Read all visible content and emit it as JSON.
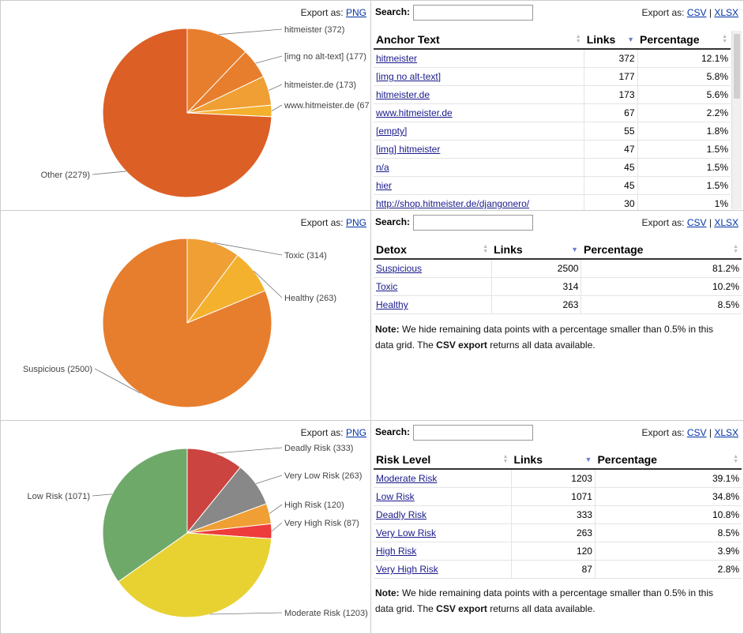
{
  "export_png_label": "Export as:",
  "export_png_link": "PNG",
  "export_grid_label": "Export as:",
  "export_csv": "CSV",
  "export_xlsx": "XLSX",
  "export_separator": "|",
  "search_label": "Search:",
  "note_bold": "Note:",
  "note_text": " We hide remaining data points with a percentage smaller than 0.5% in this data grid. The ",
  "note_bold2": "CSV export",
  "note_text2": " returns all data available.",
  "colors": {
    "orange_dark": "#dc5f26",
    "orange": "#e77e2d",
    "orange_light": "#ef9f34",
    "yellow_orange": "#f4b12e",
    "red": "#cc4440",
    "gray": "#888888",
    "green": "#6fa96a",
    "yellow": "#e8d232",
    "bright_red": "#ee3b3b"
  },
  "chart_data": [
    {
      "type": "pie",
      "slices": [
        {
          "label": "hitmeister (372)",
          "value": 372
        },
        {
          "label": "[img no alt-text] (177)",
          "value": 177
        },
        {
          "label": "hitmeister.de (173)",
          "value": 173
        },
        {
          "label": "www.hitmeister.de (67",
          "value": 67
        },
        {
          "label": "Other (2279)",
          "value": 2279
        }
      ]
    },
    {
      "type": "pie",
      "slices": [
        {
          "label": "Toxic (314)",
          "value": 314
        },
        {
          "label": "Healthy (263)",
          "value": 263
        },
        {
          "label": "Suspicious (2500)",
          "value": 2500
        }
      ]
    },
    {
      "type": "pie",
      "slices": [
        {
          "label": "Deadly Risk (333)",
          "value": 333
        },
        {
          "label": "Very Low Risk (263)",
          "value": 263
        },
        {
          "label": "High Risk (120)",
          "value": 120
        },
        {
          "label": "Very High Risk (87)",
          "value": 87
        },
        {
          "label": "Moderate Risk (1203)",
          "value": 1203
        },
        {
          "label": "Low Risk (1071)",
          "value": 1071
        }
      ]
    }
  ],
  "tables": [
    {
      "headers": [
        "Anchor Text",
        "Links",
        "Percentage"
      ],
      "rows": [
        [
          "hitmeister",
          "372",
          "12.1%"
        ],
        [
          "[img no alt-text]",
          "177",
          "5.8%"
        ],
        [
          "hitmeister.de",
          "173",
          "5.6%"
        ],
        [
          "www.hitmeister.de",
          "67",
          "2.2%"
        ],
        [
          "[empty]",
          "55",
          "1.8%"
        ],
        [
          "[img] hitmeister",
          "47",
          "1.5%"
        ],
        [
          "n/a",
          "45",
          "1.5%"
        ],
        [
          "hier",
          "45",
          "1.5%"
        ],
        [
          "http://shop.hitmeister.de/djangonero/",
          "30",
          "1%"
        ]
      ]
    },
    {
      "headers": [
        "Detox",
        "Links",
        "Percentage"
      ],
      "rows": [
        [
          "Suspicious",
          "2500",
          "81.2%"
        ],
        [
          "Toxic",
          "314",
          "10.2%"
        ],
        [
          "Healthy",
          "263",
          "8.5%"
        ]
      ]
    },
    {
      "headers": [
        "Risk Level",
        "Links",
        "Percentage"
      ],
      "rows": [
        [
          "Moderate Risk",
          "1203",
          "39.1%"
        ],
        [
          "Low Risk",
          "1071",
          "34.8%"
        ],
        [
          "Deadly Risk",
          "333",
          "10.8%"
        ],
        [
          "Very Low Risk",
          "263",
          "8.5%"
        ],
        [
          "High Risk",
          "120",
          "3.9%"
        ],
        [
          "Very High Risk",
          "87",
          "2.8%"
        ]
      ]
    }
  ]
}
